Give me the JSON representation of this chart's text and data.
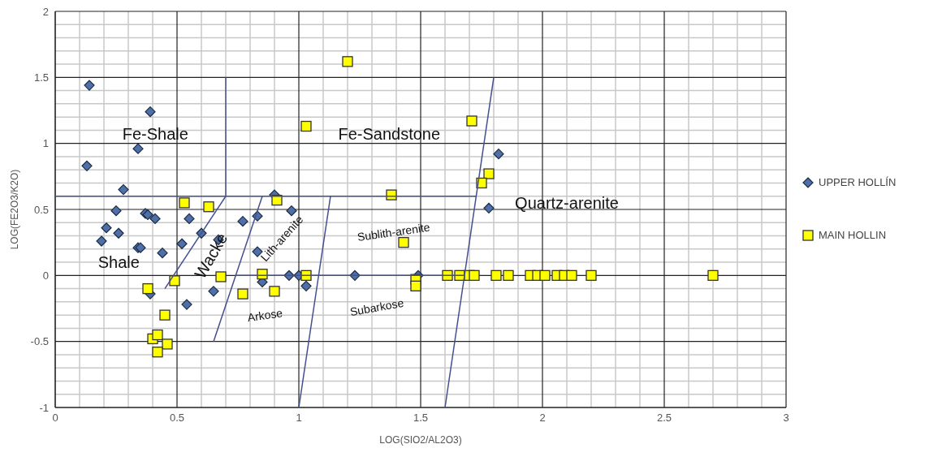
{
  "chart_data": {
    "type": "scatter",
    "xlabel": "LOG(SIO2/AL2O3)",
    "ylabel": "LOG(FE2O3/K2O)",
    "xlim": [
      0,
      3
    ],
    "xticks": [
      0,
      0.5,
      1,
      1.5,
      2,
      2.5,
      3
    ],
    "ylim": [
      -1,
      2
    ],
    "yticks": [
      -1,
      -0.5,
      0,
      0.5,
      1,
      1.5,
      2
    ],
    "grid": true,
    "legend": "right",
    "series": [
      {
        "name": "UPPER HOLLÍN",
        "marker": "diamond",
        "color": "#4f6fa8",
        "x": [
          0.14,
          0.39,
          0.34,
          0.13,
          0.28,
          0.25,
          0.37,
          0.38,
          0.41,
          0.55,
          0.21,
          0.26,
          0.19,
          0.34,
          0.35,
          0.44,
          0.52,
          0.6,
          0.67,
          0.77,
          0.83,
          0.9,
          0.97,
          0.83,
          0.96,
          1.0,
          0.39,
          0.54,
          0.65,
          0.85,
          1.03,
          1.23,
          1.49,
          1.82,
          1.78
        ],
        "values": [
          1.44,
          1.24,
          0.96,
          0.83,
          0.65,
          0.49,
          0.47,
          0.46,
          0.43,
          0.43,
          0.36,
          0.32,
          0.26,
          0.21,
          0.21,
          0.17,
          0.24,
          0.32,
          0.27,
          0.41,
          0.45,
          0.61,
          0.49,
          0.18,
          0,
          0,
          -0.14,
          -0.22,
          -0.12,
          -0.05,
          -0.08,
          0,
          0,
          0.92,
          0.51
        ]
      },
      {
        "name": "MAIN HOLLIN",
        "marker": "square",
        "color": "#ffff00",
        "x": [
          0.53,
          0.63,
          0.91,
          1.03,
          0.49,
          0.38,
          0.68,
          0.77,
          0.85,
          0.9,
          1.03,
          0.45,
          0.4,
          0.42,
          0.46,
          0.42,
          1.2,
          1.71,
          1.78,
          1.75,
          1.38,
          1.43,
          1.48,
          1.48,
          1.61,
          1.66,
          1.7,
          1.72,
          1.81,
          1.86,
          1.95,
          1.98,
          2.01,
          2.06,
          2.09,
          2.12,
          2.2,
          2.7
        ],
        "values": [
          0.55,
          0.52,
          0.57,
          1.13,
          -0.04,
          -0.1,
          -0.01,
          -0.14,
          0.01,
          -0.12,
          0,
          -0.3,
          -0.48,
          -0.45,
          -0.52,
          -0.58,
          1.62,
          1.17,
          0.77,
          0.7,
          0.61,
          0.25,
          -0.03,
          -0.08,
          0,
          0,
          0,
          0,
          0,
          0,
          0,
          0,
          0,
          0,
          0,
          0,
          0,
          0
        ]
      },
      {
        "type": "line",
        "color": "#44508f",
        "x": [
          0,
          1.73
        ],
        "values": [
          0.6,
          0.6
        ]
      },
      {
        "type": "line",
        "color": "#44508f",
        "x": [
          0.7,
          0.7
        ],
        "values": [
          1.5,
          0.6
        ]
      },
      {
        "type": "line",
        "color": "#44508f",
        "x": [
          0.7,
          0.45
        ],
        "values": [
          0.6,
          -0.1
        ]
      },
      {
        "type": "line",
        "color": "#44508f",
        "x": [
          0.85,
          0.65
        ],
        "values": [
          0.6,
          -0.5
        ]
      },
      {
        "type": "line",
        "color": "#44508f",
        "x": [
          0.74,
          1.68
        ],
        "values": [
          0,
          0
        ]
      },
      {
        "type": "line",
        "color": "#44508f",
        "x": [
          1.13,
          1.0
        ],
        "values": [
          0.6,
          -1
        ]
      },
      {
        "type": "line",
        "color": "#44508f",
        "x": [
          1.8,
          1.6
        ],
        "values": [
          1.5,
          -1
        ]
      }
    ],
    "annotations": [
      "Fe-Shale",
      "Fe-Sandstone",
      "Quartz-arenite",
      "Shale",
      "Wacke",
      "Lith-arenite",
      "Sublith-arenite",
      "Arkose",
      "Subarkose"
    ]
  }
}
